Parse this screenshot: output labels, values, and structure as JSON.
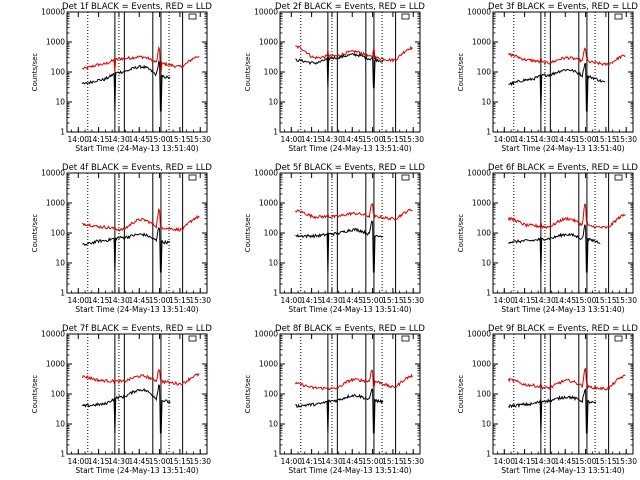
{
  "chart_data": {
    "type": "line",
    "panels": [
      {
        "title": "Det 1f BLACK = Events, RED = LLD",
        "xlabel": "Start Time (24-May-13 13:51:40)",
        "ylabel": "Counts/sec",
        "red_level": [
          130,
          180,
          280,
          320,
          190,
          150,
          340
        ],
        "black_level": [
          40,
          55,
          100,
          150,
          70,
          55,
          40
        ],
        "flare_red": 600,
        "flare_black": 220,
        "black_end": "15:08",
        "black_min": 5
      },
      {
        "title": "Det 2f BLACK = Events, RED = LLD",
        "xlabel": "Start Time (24-May-13 13:51:40)",
        "ylabel": "Counts/sec",
        "red_level": [
          700,
          300,
          340,
          480,
          300,
          250,
          650
        ],
        "black_level": [
          250,
          200,
          300,
          380,
          260,
          180,
          200
        ],
        "flare_red": 340,
        "flare_black": 300,
        "black_end": "15:08",
        "black_min": 30
      },
      {
        "title": "Det 3f BLACK = Events, RED = LLD",
        "xlabel": "Start Time (24-May-13 13:51:40)",
        "ylabel": "Counts/sec",
        "red_level": [
          380,
          250,
          200,
          300,
          220,
          180,
          350
        ],
        "black_level": [
          40,
          55,
          80,
          120,
          70,
          45,
          40
        ],
        "flare_red": 650,
        "flare_black": 200,
        "black_end": "15:15",
        "black_min": 5
      },
      {
        "title": "Det 4f BLACK = Events, RED = LLD",
        "xlabel": "Start Time (24-May-13 13:51:40)",
        "ylabel": "Counts/sec",
        "red_level": [
          200,
          160,
          130,
          280,
          150,
          130,
          350
        ],
        "black_level": [
          40,
          55,
          70,
          90,
          50,
          45,
          40
        ],
        "flare_red": 600,
        "flare_black": 160,
        "black_end": "15:08",
        "black_min": 5
      },
      {
        "title": "Det 5f BLACK = Events, RED = LLD",
        "xlabel": "Start Time (24-May-13 13:51:40)",
        "ylabel": "Counts/sec",
        "red_level": [
          550,
          350,
          350,
          450,
          350,
          300,
          600
        ],
        "black_level": [
          80,
          80,
          95,
          130,
          85,
          65,
          70
        ],
        "flare_red": 1000,
        "flare_black": 260,
        "black_end": "15:08",
        "black_min": 5
      },
      {
        "title": "Det 6f BLACK = Events, RED = LLD",
        "xlabel": "Start Time (24-May-13 13:51:40)",
        "ylabel": "Counts/sec",
        "red_level": [
          300,
          180,
          160,
          300,
          170,
          150,
          400
        ],
        "black_level": [
          50,
          55,
          65,
          90,
          60,
          45,
          40
        ],
        "flare_red": 900,
        "flare_black": 180,
        "black_end": "15:11",
        "black_min": 5
      },
      {
        "title": "Det 7f BLACK = Events, RED = LLD",
        "xlabel": "Start Time (24-May-13 13:51:40)",
        "ylabel": "Counts/sec",
        "red_level": [
          380,
          280,
          260,
          400,
          260,
          220,
          450
        ],
        "black_level": [
          40,
          45,
          80,
          140,
          60,
          45,
          40
        ],
        "flare_red": 700,
        "flare_black": 200,
        "black_end": "15:08",
        "black_min": 5
      },
      {
        "title": "Det 8f BLACK = Events, RED = LLD",
        "xlabel": "Start Time (24-May-13 13:51:40)",
        "ylabel": "Counts/sec",
        "red_level": [
          220,
          160,
          150,
          300,
          260,
          170,
          400
        ],
        "black_level": [
          40,
          45,
          60,
          90,
          60,
          45,
          35
        ],
        "flare_red": 700,
        "flare_black": 150,
        "black_end": "15:08",
        "black_min": 5
      },
      {
        "title": "Det 9f BLACK = Events, RED = LLD",
        "xlabel": "Start Time (24-May-13 13:51:40)",
        "ylabel": "Counts/sec",
        "red_level": [
          300,
          200,
          160,
          280,
          170,
          150,
          400
        ],
        "black_level": [
          40,
          45,
          60,
          80,
          55,
          40,
          35
        ],
        "flare_red": 700,
        "flare_black": 150,
        "black_end": "15:08",
        "black_min": 5
      }
    ],
    "x_ticks": [
      "14:00",
      "14:15",
      "14:30",
      "14:45",
      "15:00",
      "15:15",
      "15:30"
    ],
    "y_ticks": [
      "1",
      "10",
      "100",
      "1000",
      "10000"
    ],
    "xlim": [
      "13:51:40",
      "15:35"
    ],
    "ylim": [
      1,
      10000
    ],
    "y_scale": "log",
    "dotted_lines": [
      "14:07",
      "14:30",
      "15:07"
    ],
    "solid_lines": [
      "14:27",
      "14:34",
      "14:55",
      "15:01",
      "15:17"
    ],
    "colors": {
      "black_series": "#000000",
      "red_series": "#e00000",
      "axes": "#000000"
    }
  }
}
